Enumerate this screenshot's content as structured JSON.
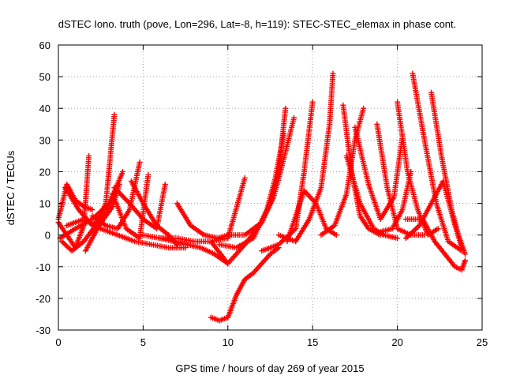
{
  "chart_data": {
    "type": "scatter",
    "title": "dSTEC Iono. truth (pove, Lon=296, Lat=-8, h=119): STEC-STEC_elemax in phase cont.",
    "xlabel": "GPS time / hours of day 269 of year 2015",
    "ylabel": "dSTEC  / TECUs",
    "xlim": [
      0,
      25
    ],
    "ylim": [
      -30,
      60
    ],
    "xticks": [
      0,
      5,
      10,
      15,
      20,
      25
    ],
    "yticks": [
      -30,
      -20,
      -10,
      0,
      10,
      20,
      30,
      40,
      50,
      60
    ],
    "grid": true,
    "marker": "+",
    "color": "#ff0000",
    "series": [
      {
        "x": [
          0.0,
          0.5,
          1.0,
          1.5,
          1.8
        ],
        "y": [
          4,
          0,
          -4,
          3,
          25
        ]
      },
      {
        "x": [
          0.0,
          0.5,
          1.0,
          1.5,
          2.0
        ],
        "y": [
          5,
          16,
          11,
          9,
          8
        ]
      },
      {
        "x": [
          0.2,
          0.8,
          1.5,
          2.2,
          2.8,
          3.3
        ],
        "y": [
          -2,
          -5,
          -2,
          3,
          10,
          38
        ]
      },
      {
        "x": [
          0.4,
          1.2,
          2.0,
          2.8,
          3.4
        ],
        "y": [
          15,
          8,
          3,
          7,
          14
        ]
      },
      {
        "x": [
          0.1,
          1.0,
          2.0,
          3.0,
          3.8
        ],
        "y": [
          -1,
          2,
          5,
          10,
          20
        ]
      },
      {
        "x": [
          2.0,
          2.8,
          3.5,
          4.2,
          4.8
        ],
        "y": [
          6,
          3,
          2,
          8,
          23
        ]
      },
      {
        "x": [
          1.6,
          2.4,
          3.2,
          3.6
        ],
        "y": [
          -5,
          3,
          9,
          16
        ]
      },
      {
        "x": [
          3.2,
          4.0,
          4.8,
          5.3
        ],
        "y": [
          13,
          2,
          -1,
          19
        ]
      },
      {
        "x": [
          0.5,
          1.5,
          2.5,
          3.5,
          4.5,
          5.5,
          6.5,
          7.5
        ],
        "y": [
          3,
          5,
          2,
          0,
          -2,
          -3,
          -4,
          -4
        ]
      },
      {
        "x": [
          3.3,
          4.2,
          5.0,
          5.8,
          6.3
        ],
        "y": [
          15,
          10,
          5,
          2,
          16
        ]
      },
      {
        "x": [
          4.3,
          5.0,
          5.8,
          6.5,
          7.0
        ],
        "y": [
          17,
          10,
          3,
          0,
          -3
        ]
      },
      {
        "x": [
          6.0,
          6.8,
          7.6,
          8.4,
          9.2,
          10.0
        ],
        "y": [
          -1,
          -2,
          -3,
          -4,
          -6,
          -9
        ]
      },
      {
        "x": [
          7.0,
          7.8,
          8.6,
          9.4,
          10.0
        ],
        "y": [
          10,
          3,
          0,
          -1,
          0
        ]
      },
      {
        "x": [
          5.0,
          6.0,
          7.0,
          8.0,
          9.0,
          10.0,
          11.0
        ],
        "y": [
          0,
          -1,
          -1,
          -2,
          -2,
          -1,
          18
        ]
      },
      {
        "x": [
          9.0,
          9.5,
          10.0,
          10.5,
          11.0,
          11.5,
          12.0,
          12.5,
          13.0
        ],
        "y": [
          -26,
          -27,
          -26,
          -19,
          -14,
          -12,
          -9,
          -6,
          -4
        ]
      },
      {
        "x": [
          9.0,
          10.0,
          11.0,
          12.0,
          12.5,
          13.0,
          13.4
        ],
        "y": [
          -2,
          -9,
          -3,
          4,
          10,
          20,
          40
        ]
      },
      {
        "x": [
          9.5,
          10.5,
          11.5,
          12.3,
          12.8,
          13.3
        ],
        "y": [
          -3,
          -4,
          -1,
          8,
          18,
          32
        ]
      },
      {
        "x": [
          10.0,
          11.0,
          12.0,
          12.7,
          13.2,
          13.9
        ],
        "y": [
          0,
          0,
          4,
          12,
          22,
          37
        ]
      },
      {
        "x": [
          12.0,
          13.0,
          14.0,
          14.5,
          15.0
        ],
        "y": [
          -5,
          -3,
          2,
          20,
          42
        ]
      },
      {
        "x": [
          13.0,
          14.0,
          14.8,
          15.5,
          16.0,
          16.2
        ],
        "y": [
          0,
          -2,
          5,
          15,
          35,
          51
        ]
      },
      {
        "x": [
          13.5,
          14.5,
          15.2,
          15.8,
          16.4
        ],
        "y": [
          -2,
          14,
          10,
          2,
          0
        ]
      },
      {
        "x": [
          15.5,
          16.3,
          17.0,
          17.5,
          18.0
        ],
        "y": [
          0,
          3,
          13,
          30,
          40
        ]
      },
      {
        "x": [
          16.8,
          17.3,
          17.8,
          18.3,
          19.0
        ],
        "y": [
          41,
          20,
          6,
          2,
          0
        ]
      },
      {
        "x": [
          17.0,
          17.8,
          18.6,
          19.2,
          20.0
        ],
        "y": [
          25,
          10,
          2,
          0,
          -1
        ]
      },
      {
        "x": [
          17.5,
          18.3,
          19.0,
          19.8,
          20.3
        ],
        "y": [
          34,
          16,
          5,
          12,
          31
        ]
      },
      {
        "x": [
          18.8,
          19.4,
          20.0,
          20.8,
          21.6
        ],
        "y": [
          35,
          15,
          2,
          0,
          0
        ]
      },
      {
        "x": [
          19.0,
          19.7,
          20.3,
          20.8
        ],
        "y": [
          1,
          2,
          8,
          20
        ]
      },
      {
        "x": [
          20.0,
          20.6,
          21.2,
          21.8,
          22.4
        ],
        "y": [
          42,
          20,
          8,
          0,
          2
        ]
      },
      {
        "x": [
          20.9,
          21.6,
          22.3,
          23.0,
          23.8
        ],
        "y": [
          51,
          30,
          10,
          -2,
          -5
        ]
      },
      {
        "x": [
          22.0,
          22.6,
          23.2,
          23.6,
          24.0
        ],
        "y": [
          45,
          25,
          8,
          0,
          -6
        ]
      },
      {
        "x": [
          20.5,
          21.3,
          22.0,
          22.7,
          23.3,
          23.8
        ],
        "y": [
          -1,
          3,
          10,
          17,
          5,
          -4
        ]
      },
      {
        "x": [
          20.5,
          21.5,
          22.2,
          22.8,
          23.4,
          23.8,
          24.0
        ],
        "y": [
          5,
          5,
          -2,
          -6,
          -10,
          -11,
          -8
        ]
      }
    ]
  }
}
